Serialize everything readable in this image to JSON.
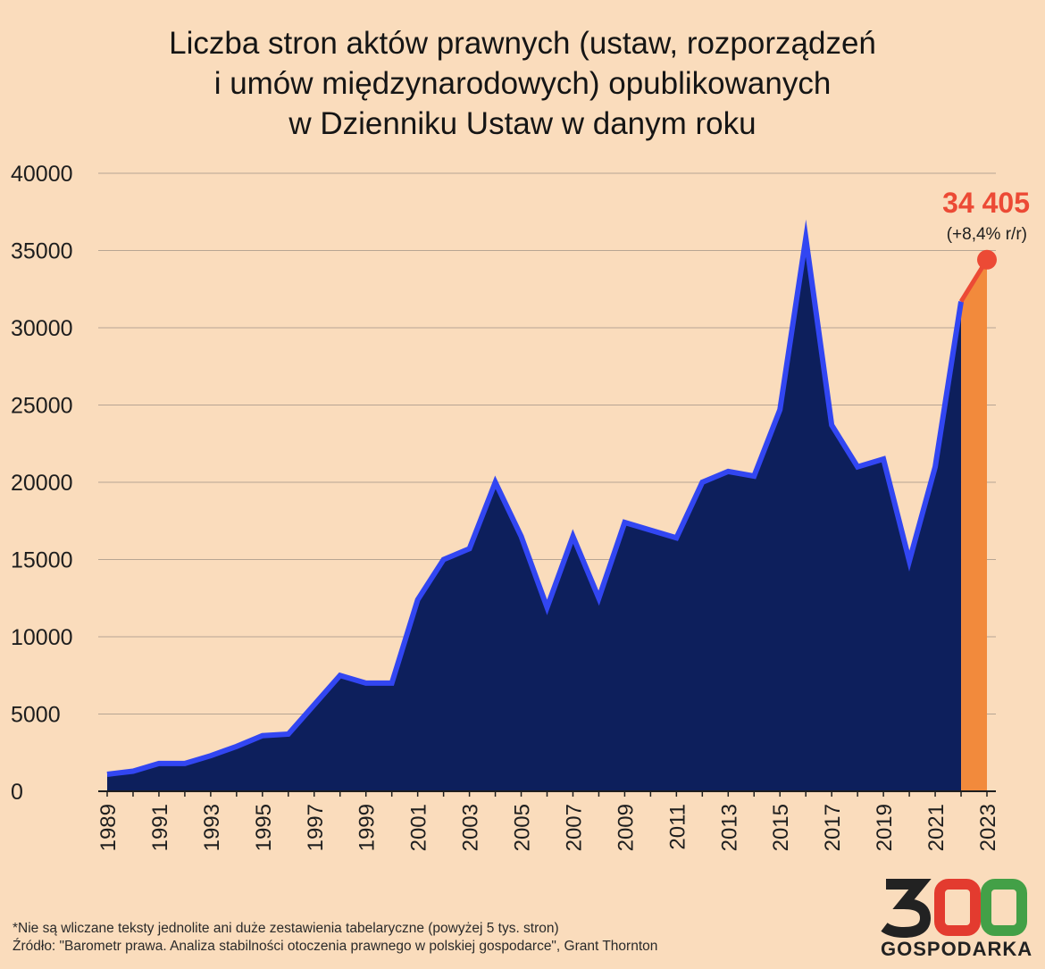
{
  "title_lines": [
    "Liczba stron aktów prawnych (ustaw, rozporządzeń",
    "i umów międzynarodowych) opublikowanych",
    "w Dzienniku Ustaw w danym roku"
  ],
  "chart_data": {
    "type": "area",
    "title": "Liczba stron aktów prawnych (ustaw, rozporządzeń i umów międzynarodowych) opublikowanych w Dzienniku Ustaw w danym roku",
    "xlabel": "",
    "ylabel": "",
    "ylim": [
      0,
      40000
    ],
    "yticks": [
      0,
      5000,
      10000,
      15000,
      20000,
      25000,
      30000,
      35000,
      40000
    ],
    "grid": true,
    "xtick_labels": [
      "1989",
      "1991",
      "1993",
      "1995",
      "1997",
      "1999",
      "2001",
      "2003",
      "2005",
      "2007",
      "2009",
      "2011",
      "2013",
      "2015",
      "2017",
      "2019",
      "2021",
      "2023"
    ],
    "x": [
      1989,
      1990,
      1991,
      1992,
      1993,
      1994,
      1995,
      1996,
      1997,
      1998,
      1999,
      2000,
      2001,
      2002,
      2003,
      2004,
      2005,
      2006,
      2007,
      2008,
      2009,
      2010,
      2011,
      2012,
      2013,
      2014,
      2015,
      2016,
      2017,
      2018,
      2019,
      2020,
      2021,
      2022,
      2023
    ],
    "values": [
      1100,
      1300,
      1800,
      1800,
      2300,
      2900,
      3600,
      3700,
      5600,
      7500,
      7000,
      7000,
      12400,
      15000,
      15700,
      20000,
      16500,
      11900,
      16500,
      12500,
      17400,
      16900,
      16400,
      20000,
      20700,
      20400,
      24700,
      35800,
      23700,
      21000,
      21500,
      14900,
      21000,
      31700,
      34405
    ],
    "highlight": {
      "from_year": 2022,
      "to_year": 2023,
      "value_label": "34 405",
      "change_label": "(+8,4% r/r)"
    },
    "colors": {
      "area": "#0d1f5c",
      "line": "#3246f2",
      "highlight_area": "#f28a3c",
      "highlight_line": "#ec4a35",
      "grid": "#b7a593",
      "background": "#fadcbc"
    }
  },
  "footnote": {
    "note": "*Nie są wliczane teksty jednolite ani duże zestawienia tabelaryczne (powyżej 5 tys. stron)",
    "source": "Źródło: \"Barometr prawa. Analiza stabilności otoczenia prawnego w polskiej gospodarce\", Grant Thornton"
  },
  "logo": {
    "digits": "300",
    "text": "GOSPODARKA",
    "colors": {
      "three": "#222222",
      "zero_red": "#e33b2f",
      "zero_green": "#43a047"
    }
  }
}
